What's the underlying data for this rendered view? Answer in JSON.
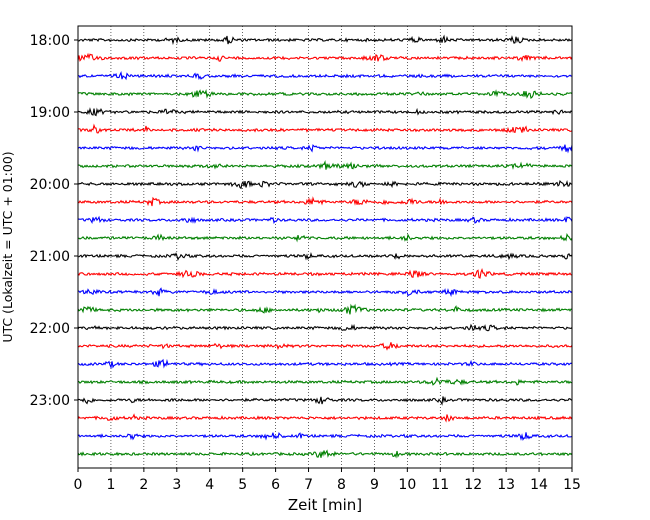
{
  "chart_data": {
    "type": "line",
    "title": "",
    "xlabel": "Zeit  [min]",
    "ylabel": "UTC (Lokalzeit = UTC + 01:00)",
    "xlim": [
      0,
      15
    ],
    "x_ticks": [
      "0",
      "1",
      "2",
      "3",
      "4",
      "5",
      "6",
      "7",
      "8",
      "9",
      "10",
      "11",
      "12",
      "13",
      "14",
      "15"
    ],
    "y_ticks": [
      "18:00",
      "19:00",
      "20:00",
      "21:00",
      "22:00",
      "23:00"
    ],
    "grid": "vertical dotted lines at each minute",
    "trace_interval_min": 15,
    "trace_colors": [
      "#000000",
      "#ff0000",
      "#0000ff",
      "#008000"
    ],
    "trace_starts": [
      "18:00",
      "18:15",
      "18:30",
      "18:45",
      "19:00",
      "19:15",
      "19:30",
      "19:45",
      "20:00",
      "20:15",
      "20:30",
      "20:45",
      "21:00",
      "21:15",
      "21:30",
      "21:45",
      "22:00",
      "22:15",
      "22:30",
      "22:45",
      "23:00",
      "23:15",
      "23:30",
      "23:45"
    ]
  }
}
